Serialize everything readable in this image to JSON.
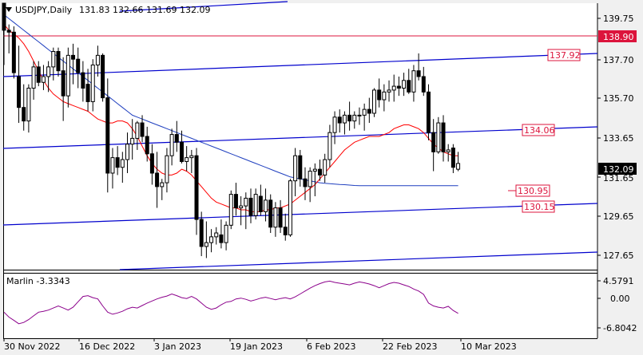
{
  "header": {
    "symbol_label": "USDJPY,Daily",
    "ohlc": "131.83 132.66 131.69 132.09"
  },
  "indicator": {
    "name": "Marlin -3.3343",
    "levels": [
      "4.5791",
      "0.00",
      "-6.8042"
    ],
    "color": "#8b008b"
  },
  "price_axis": {
    "ticks": [
      "139.75",
      "137.70",
      "135.70",
      "133.65",
      "131.65",
      "129.65",
      "127.65"
    ],
    "current_price": "132.09"
  },
  "time_axis": {
    "labels": [
      "30 Nov 2022",
      "16 Dec 2022",
      "3 Jan 2023",
      "19 Jan 2023",
      "6 Feb 2023",
      "22 Feb 2023",
      "10 Mar 2023"
    ]
  },
  "levels": {
    "horizontal": "138.90",
    "channel_upper": "137.92",
    "channel_mid": "134.06",
    "ma_blue": "130.95",
    "channel_lower": "130.15"
  },
  "colors": {
    "background": "#ffffff",
    "candle": "#000000",
    "red_line": "#ff0000",
    "blue_line": "#0000cd",
    "ma_blue": "#1f3fbf",
    "horizontal_line": "#dc143c",
    "oscillator": "#8b008b"
  },
  "chart_data": {
    "type": "candlestick",
    "ylim": [
      126.6,
      140.4
    ],
    "candles": [
      [
        140.4,
        140.4,
        137.2,
        139.0
      ],
      [
        139.0,
        139.3,
        137.8,
        138.9
      ],
      [
        138.9,
        139.2,
        136.5,
        136.8
      ],
      [
        136.6,
        138.2,
        134.2,
        135.0
      ],
      [
        135.0,
        136.2,
        133.8,
        134.3
      ],
      [
        134.3,
        136.2,
        133.7,
        136.0
      ],
      [
        136.0,
        137.4,
        135.4,
        137.1
      ],
      [
        137.1,
        137.4,
        136.1,
        136.3
      ],
      [
        136.3,
        137.2,
        135.9,
        136.6
      ],
      [
        136.6,
        137.4,
        135.8,
        137.1
      ],
      [
        137.1,
        138.1,
        136.4,
        137.9
      ],
      [
        137.9,
        138.1,
        136.6,
        136.9
      ],
      [
        136.9,
        137.6,
        134.3,
        135.6
      ],
      [
        135.6,
        138.1,
        135.0,
        137.7
      ],
      [
        137.7,
        138.3,
        136.2,
        137.5
      ],
      [
        137.5,
        138.1,
        136.0,
        136.8
      ],
      [
        136.8,
        137.4,
        135.3,
        136.0
      ],
      [
        136.2,
        137.0,
        134.8,
        135.3
      ],
      [
        135.3,
        137.5,
        134.8,
        137.2
      ],
      [
        137.2,
        138.2,
        136.6,
        137.7
      ],
      [
        137.7,
        137.8,
        135.3,
        135.5
      ],
      [
        135.5,
        136.5,
        130.6,
        131.6
      ],
      [
        131.6,
        132.9,
        130.8,
        132.4
      ],
      [
        132.4,
        133.0,
        131.5,
        131.9
      ],
      [
        131.9,
        132.7,
        131.1,
        132.3
      ],
      [
        132.3,
        133.7,
        131.6,
        133.1
      ],
      [
        133.1,
        134.4,
        132.3,
        133.4
      ],
      [
        133.4,
        134.3,
        132.8,
        134.2
      ],
      [
        134.2,
        134.6,
        133.2,
        133.5
      ],
      [
        133.5,
        134.0,
        132.2,
        132.6
      ],
      [
        132.6,
        133.1,
        131.0,
        131.6
      ],
      [
        131.6,
        132.7,
        129.8,
        130.9
      ],
      [
        130.9,
        131.3,
        130.2,
        131.1
      ],
      [
        131.1,
        132.9,
        130.6,
        132.5
      ],
      [
        132.5,
        133.9,
        132.0,
        133.6
      ],
      [
        133.6,
        134.3,
        132.7,
        133.2
      ],
      [
        133.2,
        133.8,
        132.1,
        132.2
      ],
      [
        132.2,
        133.0,
        131.7,
        132.4
      ],
      [
        132.4,
        132.8,
        131.6,
        132.5
      ],
      [
        132.5,
        132.9,
        128.4,
        129.2
      ],
      [
        129.2,
        129.6,
        127.3,
        127.8
      ],
      [
        127.8,
        129.1,
        127.2,
        128.0
      ],
      [
        128.0,
        128.7,
        127.5,
        128.3
      ],
      [
        128.3,
        128.8,
        127.9,
        128.5
      ],
      [
        128.4,
        129.2,
        127.7,
        128.0
      ],
      [
        128.0,
        129.1,
        127.6,
        128.9
      ],
      [
        128.9,
        130.7,
        128.7,
        130.5
      ],
      [
        130.5,
        131.1,
        129.4,
        129.8
      ],
      [
        129.8,
        130.4,
        128.9,
        129.9
      ],
      [
        129.9,
        130.6,
        128.7,
        130.3
      ],
      [
        130.3,
        130.8,
        129.0,
        129.4
      ],
      [
        129.4,
        130.8,
        129.2,
        130.5
      ],
      [
        130.4,
        131.0,
        129.4,
        129.6
      ],
      [
        129.6,
        130.8,
        129.1,
        130.2
      ],
      [
        130.2,
        130.5,
        128.5,
        128.8
      ],
      [
        128.8,
        130.1,
        128.3,
        129.8
      ],
      [
        129.8,
        130.2,
        128.5,
        128.8
      ],
      [
        128.8,
        129.5,
        128.1,
        128.4
      ],
      [
        128.4,
        131.3,
        128.3,
        131.2
      ],
      [
        131.2,
        132.9,
        130.4,
        132.5
      ],
      [
        132.5,
        132.8,
        130.9,
        131.3
      ],
      [
        131.3,
        131.9,
        130.2,
        130.9
      ],
      [
        130.9,
        131.9,
        130.1,
        131.7
      ],
      [
        131.7,
        132.1,
        130.4,
        131.8
      ],
      [
        131.8,
        132.3,
        131.2,
        131.5
      ],
      [
        131.5,
        132.6,
        131.1,
        132.3
      ],
      [
        132.3,
        134.1,
        131.9,
        133.7
      ],
      [
        133.7,
        134.8,
        133.1,
        134.5
      ],
      [
        134.5,
        134.9,
        133.7,
        134.2
      ],
      [
        134.2,
        134.8,
        133.6,
        134.6
      ],
      [
        134.6,
        135.3,
        133.8,
        134.3
      ],
      [
        134.3,
        134.8,
        133.9,
        134.6
      ],
      [
        134.6,
        135.0,
        134.1,
        134.6
      ],
      [
        134.6,
        135.2,
        133.8,
        134.9
      ],
      [
        134.9,
        135.5,
        134.2,
        134.7
      ],
      [
        134.7,
        136.0,
        134.5,
        135.9
      ],
      [
        135.9,
        136.5,
        135.0,
        135.4
      ],
      [
        135.4,
        136.2,
        134.8,
        135.8
      ],
      [
        135.8,
        136.4,
        135.3,
        135.9
      ],
      [
        135.9,
        136.7,
        135.3,
        136.1
      ],
      [
        136.1,
        136.6,
        135.6,
        136.0
      ],
      [
        136.0,
        136.8,
        135.6,
        136.4
      ],
      [
        136.4,
        137.0,
        135.7,
        135.8
      ],
      [
        135.8,
        137.2,
        135.3,
        136.9
      ],
      [
        136.9,
        137.8,
        136.4,
        136.6
      ],
      [
        136.6,
        137.1,
        135.6,
        135.8
      ],
      [
        135.8,
        136.2,
        133.3,
        133.7
      ],
      [
        133.7,
        134.4,
        131.7,
        132.7
      ],
      [
        132.7,
        134.5,
        132.6,
        134.2
      ],
      [
        134.2,
        134.6,
        132.2,
        132.7
      ],
      [
        132.7,
        133.1,
        132.2,
        132.8
      ],
      [
        132.9,
        133.1,
        131.6,
        131.9
      ],
      [
        131.8,
        132.7,
        131.7,
        132.1
      ]
    ],
    "red_ma": [
      139.3,
      139.0,
      138.8,
      138.6,
      138.3,
      137.9,
      137.4,
      136.9,
      136.4,
      136.0,
      135.7,
      135.5,
      135.3,
      135.2,
      135.1,
      135.0,
      134.9,
      134.8,
      134.6,
      134.4,
      134.3,
      134.2,
      134.2,
      134.3,
      134.3,
      134.2,
      133.9,
      133.5,
      133.0,
      132.5,
      132.1,
      131.8,
      131.6,
      131.5,
      131.5,
      131.6,
      131.8,
      131.7,
      131.5,
      131.2,
      130.9,
      130.6,
      130.3,
      130.1,
      130.0,
      129.9,
      129.8,
      129.8,
      129.7,
      129.7,
      129.6,
      129.6,
      129.6,
      129.7,
      129.7,
      129.8,
      129.8,
      129.9,
      130.0,
      130.2,
      130.4,
      130.6,
      130.8,
      131.0,
      131.3,
      131.6,
      131.9,
      132.2,
      132.5,
      132.8,
      133.0,
      133.2,
      133.3,
      133.4,
      133.5,
      133.5,
      133.5,
      133.6,
      133.7,
      133.9,
      134.0,
      134.1,
      134.1,
      134.0,
      133.9,
      133.7,
      133.4,
      133.1,
      132.9,
      132.7,
      132.6,
      132.5,
      132.5
    ],
    "blue_ma": [
      139.8,
      139.6,
      139.4,
      139.2,
      139.0,
      138.8,
      138.6,
      138.4,
      138.2,
      138.0,
      137.8,
      137.6,
      137.4,
      137.2,
      137.0,
      136.8,
      136.6,
      136.4,
      136.2,
      136.0,
      135.8,
      135.6,
      135.4,
      135.2,
      135.0,
      134.8,
      134.6,
      134.5,
      134.4,
      134.3,
      134.2,
      134.1,
      134.0,
      133.9,
      133.8,
      133.7,
      133.6,
      133.5,
      133.4,
      133.3,
      133.2,
      133.1,
      133.0,
      132.9,
      132.8,
      132.7,
      132.6,
      132.5,
      132.4,
      132.3,
      132.2,
      132.1,
      132.0,
      131.9,
      131.8,
      131.7,
      131.6,
      131.5,
      131.4,
      131.35,
      131.3,
      131.25,
      131.2,
      131.15,
      131.1,
      131.07,
      131.05,
      131.03,
      131.01,
      131.0,
      130.98,
      130.96,
      130.95,
      130.95,
      130.95,
      130.95,
      130.95,
      130.95,
      130.95,
      130.95,
      130.95,
      130.95,
      130.95,
      130.95,
      130.95,
      130.95,
      130.95,
      130.95,
      130.95,
      130.95,
      130.95,
      130.95,
      130.95
    ],
    "oscillator": [
      -3.0,
      -4.2,
      -5.0,
      -5.8,
      -5.5,
      -4.8,
      -3.9,
      -3.0,
      -2.8,
      -2.5,
      -2.0,
      -1.5,
      -2.0,
      -2.5,
      -1.8,
      -0.5,
      0.8,
      1.0,
      0.5,
      0.2,
      -1.5,
      -3.0,
      -3.5,
      -3.2,
      -2.8,
      -2.2,
      -1.8,
      -2.0,
      -1.4,
      -0.8,
      -0.3,
      0.2,
      0.6,
      0.9,
      1.4,
      1.0,
      0.5,
      0.3,
      0.8,
      0.2,
      -0.8,
      -1.8,
      -2.3,
      -2.0,
      -1.2,
      -0.6,
      -0.4,
      0.2,
      0.4,
      0.1,
      -0.3,
      0.0,
      0.4,
      0.6,
      0.3,
      0.0,
      0.3,
      0.5,
      0.2,
      0.7,
      1.4,
      2.1,
      2.8,
      3.4,
      3.9,
      4.3,
      4.5,
      4.2,
      4.0,
      3.8,
      3.6,
      4.0,
      4.3,
      4.1,
      3.8,
      3.4,
      2.9,
      3.4,
      3.9,
      4.2,
      4.0,
      3.6,
      3.2,
      2.6,
      2.1,
      1.3,
      -0.8,
      -1.5,
      -1.8,
      -2.0,
      -1.6,
      -2.6,
      -3.3
    ]
  }
}
